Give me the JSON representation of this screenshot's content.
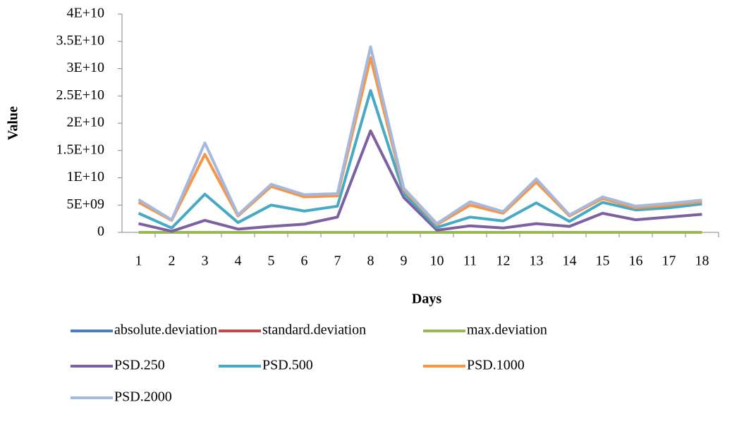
{
  "chart_data": {
    "type": "line",
    "xlabel": "Days",
    "ylabel": "Value",
    "categories": [
      "1",
      "2",
      "3",
      "4",
      "5",
      "6",
      "7",
      "8",
      "9",
      "10",
      "11",
      "12",
      "13",
      "14",
      "15",
      "16",
      "17",
      "18"
    ],
    "series": [
      {
        "name": "absolute.deviation",
        "color": "#4a7ebb",
        "values": [
          0,
          0,
          0,
          0,
          0,
          0,
          0,
          0,
          0,
          0,
          0,
          0,
          0,
          0,
          0,
          0,
          0,
          0
        ]
      },
      {
        "name": "standard.deviation",
        "color": "#be4b48",
        "values": [
          0,
          0,
          0,
          0,
          0,
          0,
          0,
          0,
          0,
          0,
          0,
          0,
          0,
          0,
          0,
          0,
          0,
          0
        ]
      },
      {
        "name": "max.deviation",
        "color": "#98b954",
        "values": [
          0,
          0,
          0,
          0,
          0,
          0,
          0,
          0,
          0,
          0,
          0,
          0,
          0,
          0,
          0,
          0,
          0,
          0
        ]
      },
      {
        "name": "PSD.250",
        "color": "#7d60a0",
        "values": [
          1600000000,
          200000000,
          2200000000,
          600000000,
          1100000000,
          1500000000,
          2800000000,
          18600000000,
          6400000000,
          400000000,
          1200000000,
          800000000,
          1600000000,
          1100000000,
          3500000000,
          2300000000,
          2800000000,
          3300000000
        ]
      },
      {
        "name": "PSD.500",
        "color": "#46aac5",
        "values": [
          3500000000,
          800000000,
          7000000000,
          1800000000,
          5000000000,
          3900000000,
          4800000000,
          26000000000,
          7200000000,
          900000000,
          2800000000,
          2100000000,
          5400000000,
          2000000000,
          5500000000,
          4100000000,
          4500000000,
          5200000000
        ]
      },
      {
        "name": "PSD.1000",
        "color": "#f79646",
        "values": [
          5500000000,
          2200000000,
          14300000000,
          3000000000,
          8400000000,
          6500000000,
          6700000000,
          32000000000,
          7800000000,
          1400000000,
          5000000000,
          3500000000,
          9200000000,
          3000000000,
          6200000000,
          4500000000,
          5000000000,
          5600000000
        ]
      },
      {
        "name": "PSD.2000",
        "color": "#a5b8de",
        "values": [
          6000000000,
          2300000000,
          16400000000,
          3200000000,
          8800000000,
          6900000000,
          7100000000,
          34000000000,
          8100000000,
          1600000000,
          5600000000,
          3800000000,
          9800000000,
          3200000000,
          6500000000,
          4800000000,
          5300000000,
          5900000000
        ]
      }
    ],
    "ylim": [
      0,
      40000000000
    ],
    "yticks": [
      0,
      {
        "value": 5000000000,
        "label": "5E+09"
      },
      {
        "value": 10000000000,
        "label": "1E+10"
      },
      {
        "value": 15000000000,
        "label": "1.5E+10"
      },
      {
        "value": 20000000000,
        "label": "2E+10"
      },
      {
        "value": 25000000000,
        "label": "2.5E+10"
      },
      {
        "value": 30000000000,
        "label": "3E+10"
      },
      {
        "value": 35000000000,
        "label": "3.5E+10"
      },
      {
        "value": 40000000000,
        "label": "4E+10"
      }
    ],
    "grid": false
  }
}
